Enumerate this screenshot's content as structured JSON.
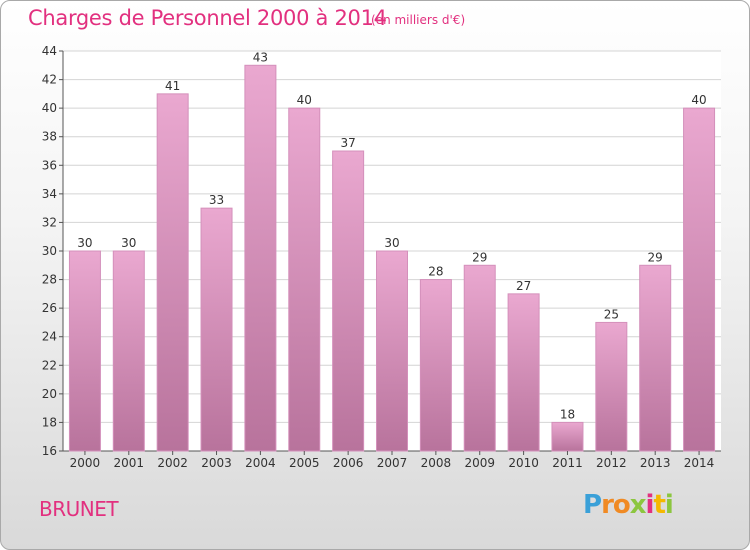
{
  "title": "Charges de Personnel 2000 à 2014",
  "subtitle": "(en milliers d'€)",
  "commune": "BRUNET",
  "logo": {
    "letters": [
      "P",
      "r",
      "o",
      "x",
      "i",
      "t",
      "i"
    ],
    "colors": [
      "#3aa0d8",
      "#f08a24",
      "#f08a24",
      "#8cc63f",
      "#e2307f",
      "#f5b800",
      "#8cc63f"
    ]
  },
  "colors": {
    "bar_top": "#eaa8d0",
    "bar_bottom": "#b8739c",
    "accent": "#e2307f"
  },
  "chart_data": {
    "type": "bar",
    "title": "Charges de Personnel 2000 à 2014",
    "subtitle": "(en milliers d'€)",
    "categories": [
      "2000",
      "2001",
      "2002",
      "2003",
      "2004",
      "2005",
      "2006",
      "2007",
      "2008",
      "2009",
      "2010",
      "2011",
      "2012",
      "2013",
      "2014"
    ],
    "values": [
      30,
      30,
      41,
      33,
      43,
      40,
      37,
      30,
      28,
      29,
      27,
      18,
      25,
      29,
      40
    ],
    "ylim": [
      16,
      44
    ],
    "yticks": [
      16,
      18,
      20,
      22,
      24,
      26,
      28,
      30,
      32,
      34,
      36,
      38,
      40,
      42,
      44
    ],
    "grid": true,
    "xlabel": "",
    "ylabel": ""
  }
}
